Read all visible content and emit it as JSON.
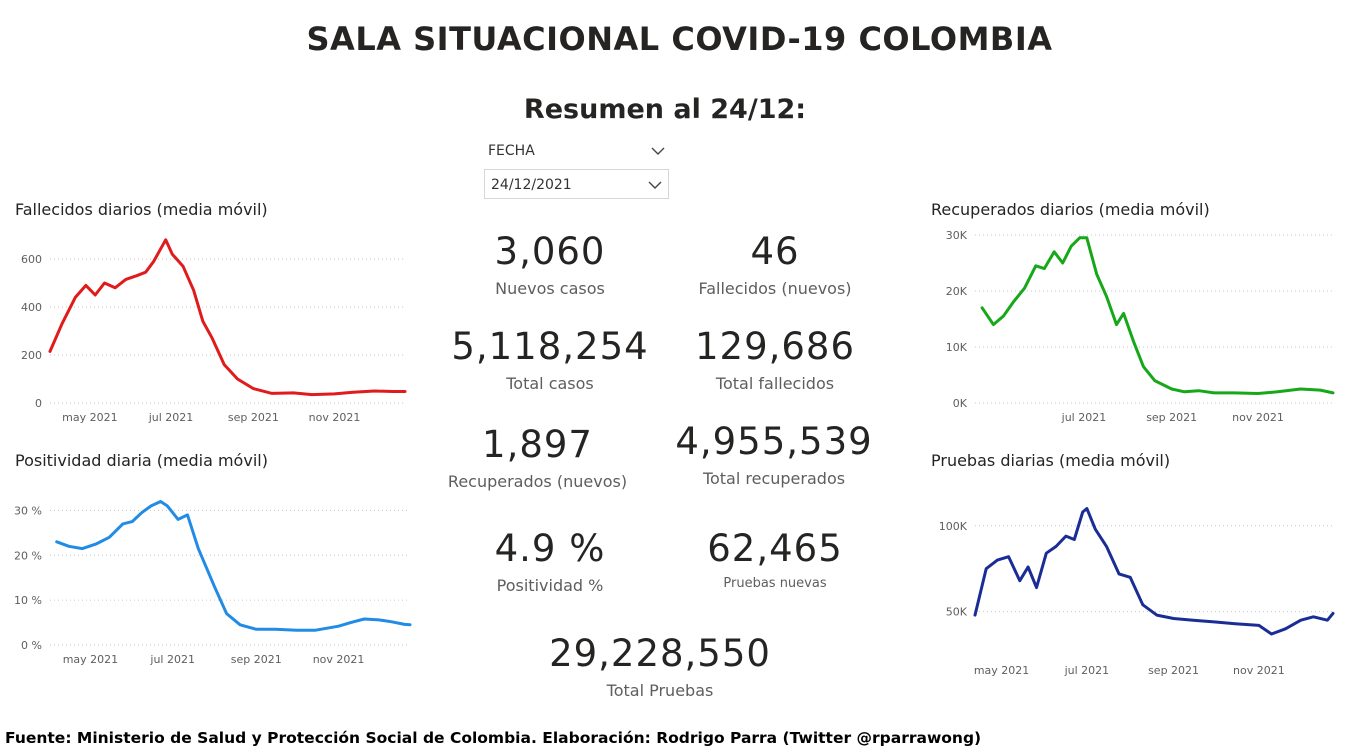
{
  "title": "SALA SITUACIONAL COVID-19 COLOMBIA",
  "subtitle": "Resumen al 24/12:",
  "filter": {
    "label": "FECHA",
    "value": "24/12/2021"
  },
  "kpis": [
    {
      "value": "3,060",
      "label": "Nuevos casos"
    },
    {
      "value": "46",
      "label": "Fallecidos (nuevos)"
    },
    {
      "value": "5,118,254",
      "label": "Total casos"
    },
    {
      "value": "129,686",
      "label": "Total fallecidos"
    },
    {
      "value": "1,897",
      "label": "Recuperados (nuevos)"
    },
    {
      "value": "4,955,539",
      "label": "Total recuperados"
    },
    {
      "value": "4.9 %",
      "label": "Positividad %"
    },
    {
      "value": "62,465",
      "label": "Pruebas nuevas"
    },
    {
      "value": "29,228,550",
      "label": "Total Pruebas"
    }
  ],
  "footer": "Fuente: Ministerio de Salud y Protección Social de Colombia. Elaboración: Rodrigo Parra (Twitter @rparrawong)",
  "chart_data": [
    {
      "id": "fallecidos",
      "type": "line",
      "title": "Fallecidos diarios (media móvil)",
      "color": "#e01b1b",
      "x_range": [
        "2021-04-01",
        "2021-12-24"
      ],
      "ylim": [
        0,
        700
      ],
      "y_ticks": [
        0,
        200,
        400,
        600
      ],
      "y_tick_labels": [
        "0",
        "200",
        "400",
        "600"
      ],
      "x_ticks": [
        "2021-05-01",
        "2021-07-01",
        "2021-09-01",
        "2021-11-01"
      ],
      "x_tick_labels": [
        "may 2021",
        "jul 2021",
        "sep 2021",
        "nov 2021"
      ],
      "grid": true,
      "x": [
        "2021-04-01",
        "2021-04-10",
        "2021-04-20",
        "2021-04-28",
        "2021-05-05",
        "2021-05-12",
        "2021-05-20",
        "2021-05-28",
        "2021-06-05",
        "2021-06-12",
        "2021-06-18",
        "2021-06-22",
        "2021-06-27",
        "2021-07-02",
        "2021-07-10",
        "2021-07-18",
        "2021-07-25",
        "2021-08-01",
        "2021-08-10",
        "2021-08-20",
        "2021-09-01",
        "2021-09-15",
        "2021-10-01",
        "2021-10-15",
        "2021-11-01",
        "2021-11-15",
        "2021-12-01",
        "2021-12-15",
        "2021-12-24"
      ],
      "y": [
        215,
        330,
        440,
        490,
        450,
        500,
        480,
        515,
        530,
        545,
        590,
        630,
        680,
        620,
        570,
        470,
        340,
        270,
        160,
        100,
        60,
        40,
        42,
        35,
        38,
        45,
        50,
        48,
        48
      ]
    },
    {
      "id": "positividad",
      "type": "line",
      "title": "Positividad diaria (media móvil)",
      "color": "#228be6",
      "x_range": [
        "2021-04-01",
        "2021-12-24"
      ],
      "ylim": [
        0,
        35
      ],
      "y_ticks": [
        0,
        10,
        20,
        30
      ],
      "y_tick_labels": [
        "0 %",
        "10 %",
        "20 %",
        "30 %"
      ],
      "x_ticks": [
        "2021-05-01",
        "2021-07-01",
        "2021-09-01",
        "2021-11-01"
      ],
      "x_tick_labels": [
        "may 2021",
        "jul 2021",
        "sep 2021",
        "nov 2021"
      ],
      "grid": true,
      "x": [
        "2021-04-06",
        "2021-04-15",
        "2021-04-25",
        "2021-05-05",
        "2021-05-15",
        "2021-05-25",
        "2021-06-01",
        "2021-06-08",
        "2021-06-15",
        "2021-06-22",
        "2021-06-27",
        "2021-07-05",
        "2021-07-12",
        "2021-07-20",
        "2021-08-01",
        "2021-08-10",
        "2021-08-20",
        "2021-09-01",
        "2021-09-15",
        "2021-10-01",
        "2021-10-15",
        "2021-11-01",
        "2021-11-10",
        "2021-11-20",
        "2021-12-01",
        "2021-12-10",
        "2021-12-20",
        "2021-12-24"
      ],
      "y": [
        23,
        22,
        21.5,
        22.5,
        24,
        27,
        27.5,
        29.5,
        31,
        32,
        31,
        28,
        29,
        21.5,
        13,
        7,
        4.5,
        3.5,
        3.5,
        3.3,
        3.3,
        4.2,
        5,
        5.8,
        5.6,
        5.2,
        4.6,
        4.5
      ]
    },
    {
      "id": "recuperados",
      "type": "line",
      "title": "Recuperados diarios (media móvil)",
      "color": "#17a81a",
      "x_range": [
        "2021-04-15",
        "2021-12-24"
      ],
      "ylim": [
        0,
        30000
      ],
      "y_ticks": [
        0,
        10000,
        20000,
        30000
      ],
      "y_tick_labels": [
        "0K",
        "10K",
        "20K",
        "30K"
      ],
      "x_ticks": [
        "2021-07-01",
        "2021-09-01",
        "2021-11-01"
      ],
      "x_tick_labels": [
        "jul 2021",
        "sep 2021",
        "nov 2021"
      ],
      "grid": true,
      "x": [
        "2021-04-20",
        "2021-04-28",
        "2021-05-05",
        "2021-05-12",
        "2021-05-20",
        "2021-05-28",
        "2021-06-03",
        "2021-06-10",
        "2021-06-16",
        "2021-06-22",
        "2021-06-28",
        "2021-07-03",
        "2021-07-10",
        "2021-07-17",
        "2021-07-24",
        "2021-07-29",
        "2021-08-05",
        "2021-08-12",
        "2021-08-20",
        "2021-09-01",
        "2021-09-10",
        "2021-09-20",
        "2021-10-01",
        "2021-10-15",
        "2021-11-01",
        "2021-11-15",
        "2021-12-01",
        "2021-12-15",
        "2021-12-24"
      ],
      "y": [
        17000,
        14000,
        15500,
        18000,
        20500,
        24500,
        24000,
        27000,
        25000,
        28000,
        29500,
        29500,
        23000,
        19000,
        14000,
        16000,
        11000,
        6500,
        4000,
        2500,
        2000,
        2200,
        1800,
        1800,
        1700,
        2000,
        2500,
        2300,
        1800
      ]
    },
    {
      "id": "pruebas",
      "type": "line",
      "title": "Pruebas diarias (media móvil)",
      "color": "#1a2d96",
      "x_range": [
        "2021-04-12",
        "2021-12-24"
      ],
      "ylim": [
        30000,
        115000
      ],
      "y_ticks": [
        50000,
        100000
      ],
      "y_tick_labels": [
        "50K",
        "100K"
      ],
      "x_ticks": [
        "2021-05-01",
        "2021-07-01",
        "2021-09-01",
        "2021-11-01"
      ],
      "x_tick_labels": [
        "may 2021",
        "jul 2021",
        "sep 2021",
        "nov 2021"
      ],
      "grid": true,
      "x": [
        "2021-04-12",
        "2021-04-20",
        "2021-04-28",
        "2021-05-06",
        "2021-05-14",
        "2021-05-20",
        "2021-05-26",
        "2021-06-02",
        "2021-06-09",
        "2021-06-16",
        "2021-06-22",
        "2021-06-28",
        "2021-07-01",
        "2021-07-07",
        "2021-07-15",
        "2021-07-24",
        "2021-08-01",
        "2021-08-10",
        "2021-08-20",
        "2021-09-01",
        "2021-09-15",
        "2021-10-01",
        "2021-10-15",
        "2021-11-01",
        "2021-11-10",
        "2021-11-20",
        "2021-12-01",
        "2021-12-10",
        "2021-12-20",
        "2021-12-24"
      ],
      "y": [
        48000,
        75000,
        80000,
        82000,
        68000,
        76000,
        64000,
        84000,
        88000,
        94000,
        92000,
        108000,
        110000,
        98000,
        88000,
        72000,
        70000,
        54000,
        48000,
        46000,
        45000,
        44000,
        43000,
        42000,
        37000,
        40000,
        45000,
        47000,
        45000,
        49000
      ]
    }
  ]
}
